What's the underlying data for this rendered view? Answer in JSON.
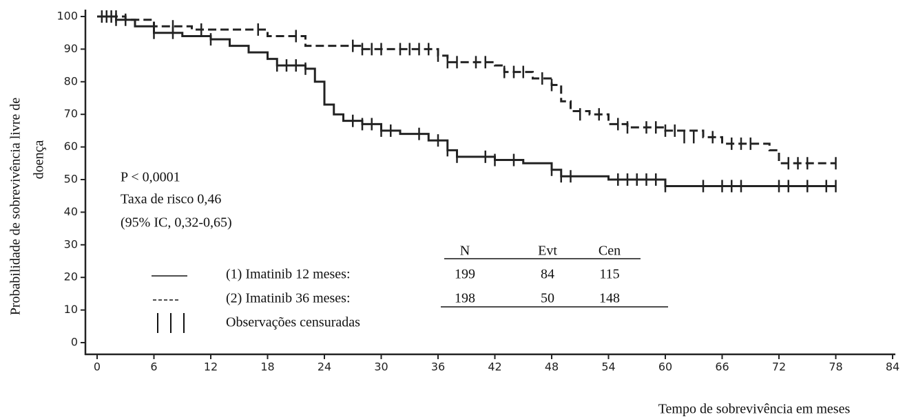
{
  "chart_data": {
    "type": "step",
    "y_label_lines": [
      "Probabilidade de sobrevivência livre de",
      "doença"
    ],
    "x_label": "Tempo de sobrevivência em meses",
    "annotations": [
      "P < 0,0001",
      "Taxa de risco 0,46",
      "(95% IC, 0,32-0,65)"
    ],
    "xlim": [
      0,
      84
    ],
    "xticks": [
      0,
      6,
      12,
      18,
      24,
      30,
      36,
      42,
      48,
      54,
      60,
      66,
      72,
      78,
      84
    ],
    "ylim": [
      0,
      100
    ],
    "yticks": [
      0,
      10,
      20,
      30,
      40,
      50,
      60,
      70,
      80,
      90,
      100
    ],
    "censor_label": "Observações censuradas",
    "table": {
      "headers": [
        "N",
        "Evt",
        "Cen"
      ],
      "rows": [
        [
          199,
          84,
          115
        ],
        [
          198,
          50,
          148
        ]
      ]
    },
    "series": [
      {
        "name": "(1) Imatinib 12 meses:",
        "color": "#222222",
        "style": "solid",
        "x": [
          0,
          2,
          4,
          6,
          9,
          12,
          14,
          16,
          18,
          19,
          22,
          23,
          24,
          25,
          26,
          28,
          30,
          32,
          35,
          37,
          38,
          42,
          45,
          48,
          49,
          54,
          60,
          78
        ],
        "values": [
          100,
          99,
          97,
          95,
          94,
          93,
          91,
          89,
          87,
          85,
          84,
          80,
          73,
          70,
          68,
          67,
          65,
          64,
          62,
          59,
          57,
          56,
          55,
          53,
          51,
          50,
          48,
          48
        ],
        "censor_x": [
          0.5,
          1,
          1.5,
          2,
          3,
          6,
          8,
          12,
          19,
          20,
          21,
          22,
          27,
          28,
          29,
          30,
          31,
          34,
          36,
          37,
          38,
          41,
          42,
          44,
          48,
          49,
          50,
          55,
          56,
          57,
          58,
          59,
          60,
          64,
          66,
          67,
          68,
          72,
          73,
          75,
          77,
          78
        ],
        "censor_values": [
          100,
          100,
          100,
          99,
          99,
          95,
          95,
          93,
          85,
          85,
          85,
          84,
          68,
          67,
          67,
          65,
          65,
          64,
          62,
          59,
          57,
          57,
          56,
          56,
          53,
          51,
          51,
          50,
          50,
          50,
          50,
          50,
          48,
          48,
          48,
          48,
          48,
          48,
          48,
          48,
          48,
          48
        ]
      },
      {
        "name": "(2) Imatinib 36 meses:",
        "color": "#222222",
        "style": "dashed",
        "x": [
          0,
          3,
          6,
          10,
          18,
          22,
          28,
          36,
          37,
          42,
          43,
          46,
          48,
          49,
          50,
          52,
          54,
          56,
          60,
          64,
          66,
          71,
          72,
          78
        ],
        "values": [
          100,
          99,
          97,
          96,
          94,
          91,
          90,
          88,
          86,
          85,
          83,
          81,
          79,
          74,
          71,
          70,
          67,
          66,
          65,
          63,
          61,
          59,
          55,
          55
        ],
        "censor_x": [
          1,
          2,
          8,
          11,
          17,
          21,
          27,
          28,
          29,
          30,
          32,
          33,
          34,
          35,
          36,
          37,
          38,
          40,
          41,
          43,
          44,
          45,
          47,
          48,
          51,
          53,
          55,
          56,
          58,
          59,
          60,
          61,
          62,
          63,
          65,
          67,
          68,
          69,
          73,
          74,
          75,
          78
        ],
        "censor_values": [
          100,
          100,
          97,
          96,
          96,
          94,
          91,
          90,
          90,
          90,
          90,
          90,
          90,
          90,
          88,
          86,
          86,
          86,
          86,
          83,
          83,
          83,
          81,
          79,
          70,
          70,
          67,
          66,
          66,
          66,
          65,
          65,
          63,
          63,
          63,
          61,
          61,
          61,
          55,
          55,
          55,
          55
        ]
      }
    ]
  }
}
